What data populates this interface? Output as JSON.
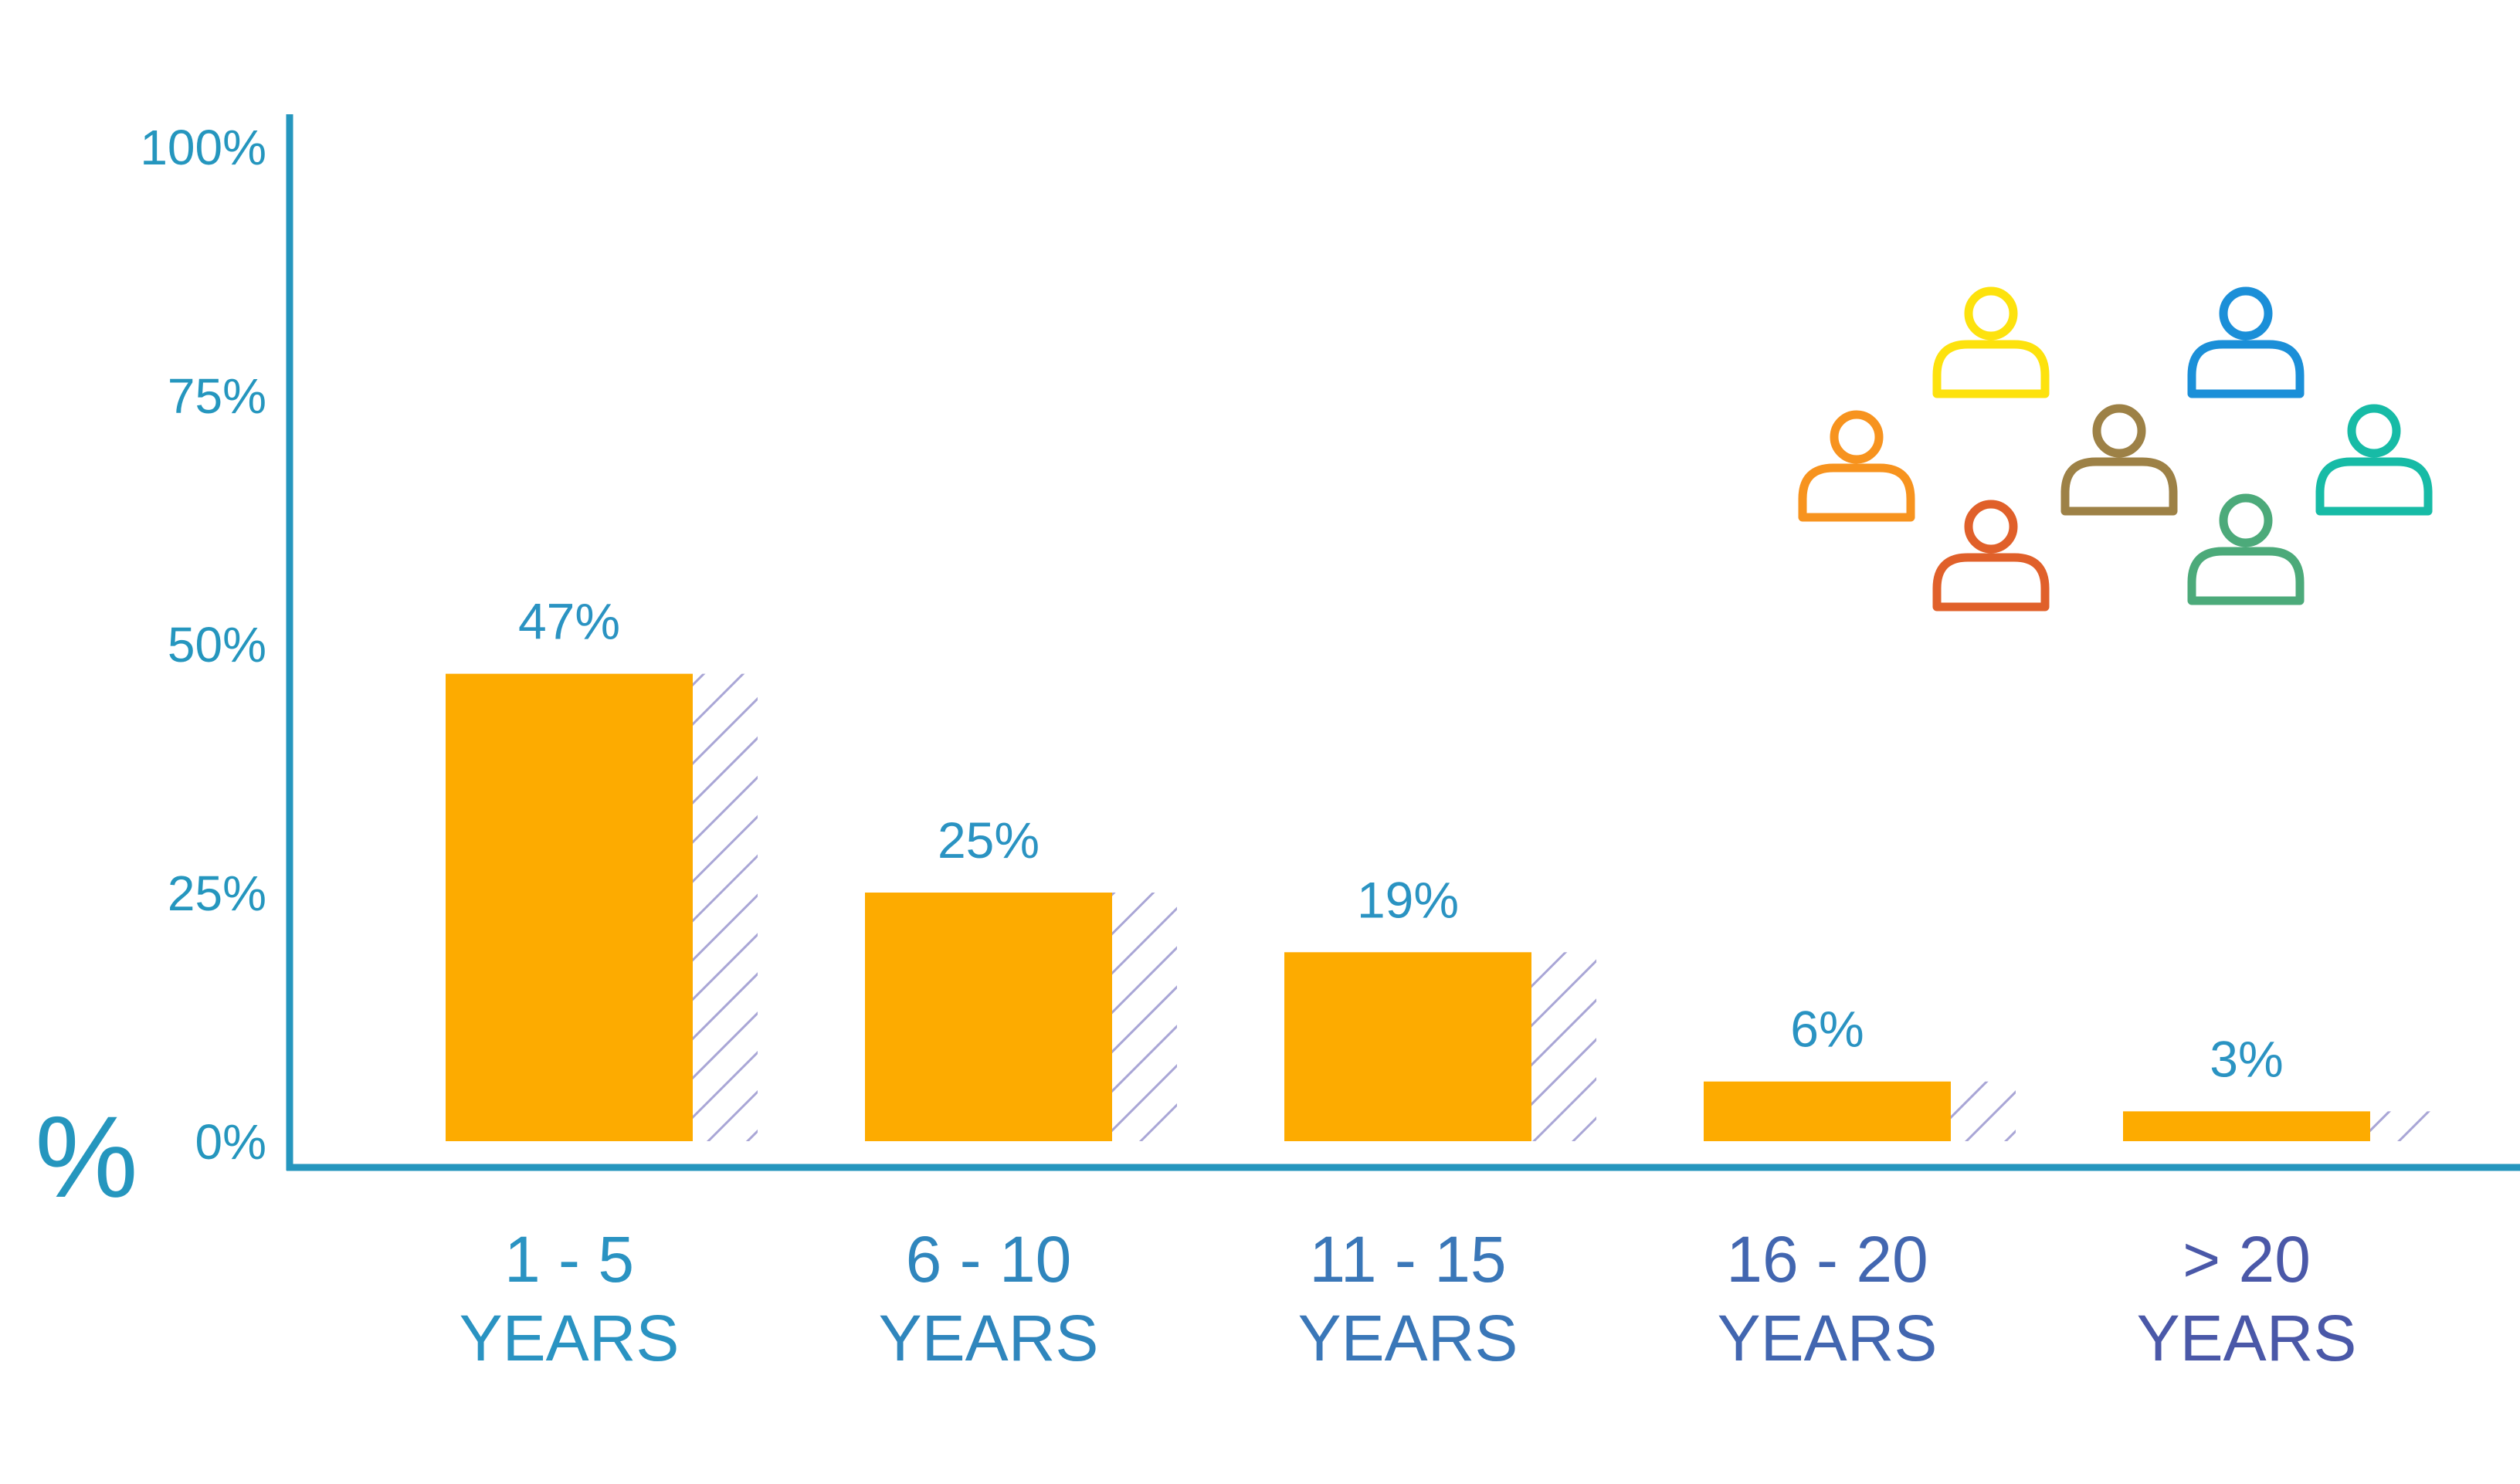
{
  "colors": {
    "axis": "#2596be",
    "bar": "#fdab00",
    "hatch": "#a9a6d6",
    "value_label": "#2a93c2",
    "people": [
      "#f7931e",
      "#fde20d",
      "#e0602a",
      "#9d8146",
      "#1b8fd8",
      "#4caa7a",
      "#17bba6"
    ]
  },
  "icons": {
    "people": [
      "person-icon",
      "person-icon",
      "person-icon",
      "person-icon",
      "person-icon",
      "person-icon",
      "person-icon"
    ]
  },
  "chart_data": {
    "type": "bar",
    "unit_label": "%",
    "ylim": [
      0,
      100
    ],
    "yticks": [
      "0%",
      "25%",
      "50%",
      "75%",
      "100%"
    ],
    "categories": [
      {
        "line1": "1 - 5",
        "line2": "YEARS"
      },
      {
        "line1": "6 - 10",
        "line2": "YEARS"
      },
      {
        "line1": "11 - 15",
        "line2": "YEARS"
      },
      {
        "line1": "16 - 20",
        "line2": "YEARS"
      },
      {
        "line1": "> 20",
        "line2": "YEARS"
      }
    ],
    "values": [
      47,
      25,
      19,
      6,
      3
    ],
    "value_labels": [
      "47%",
      "25%",
      "19%",
      "6%",
      "3%"
    ],
    "category_colors": [
      "#2a93c2",
      "#2f86bd",
      "#3a77b8",
      "#4266b0",
      "#4a58a8"
    ],
    "grid": false,
    "legend": "none"
  }
}
